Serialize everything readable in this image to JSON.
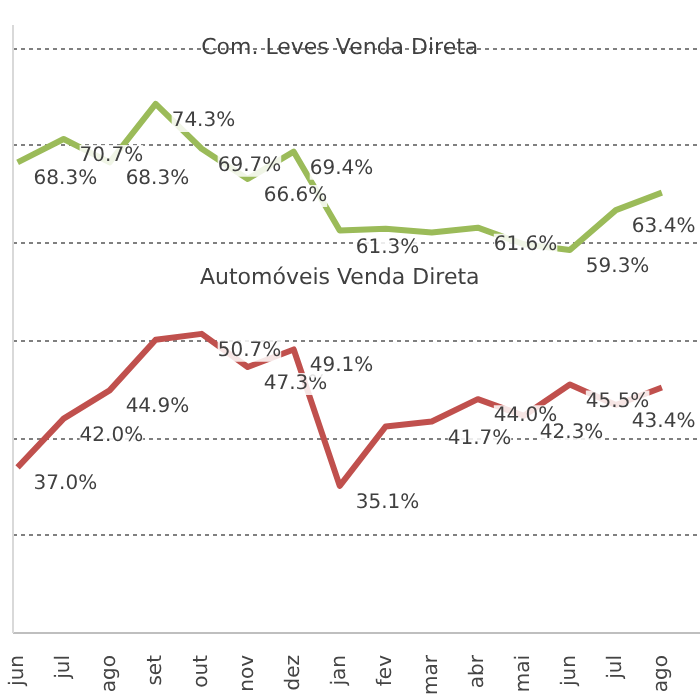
{
  "chart_data": {
    "type": "line",
    "categories": [
      "jun",
      "jul",
      "ago",
      "set",
      "out",
      "nov",
      "dez",
      "jan",
      "fev",
      "mar",
      "abr",
      "mai",
      "jun",
      "jul",
      "ago"
    ],
    "series": [
      {
        "name": "Com. Leves Venda Direta",
        "color": "#9bbb59",
        "values": [
          68.3,
          70.7,
          68.3,
          74.3,
          69.7,
          66.6,
          69.4,
          61.3,
          61.5,
          61.1,
          61.6,
          59.9,
          59.3,
          63.4,
          65.2
        ],
        "value_labels": [
          "68.3%",
          "70.7%",
          "68.3%",
          "74.3%",
          "69.7%",
          "66.6%",
          "69.4%",
          "61.3%",
          null,
          null,
          "61.6%",
          null,
          "59.3%",
          "63.4%",
          null
        ]
      },
      {
        "name": "Automóveis Venda Direta",
        "color": "#c0504d",
        "values": [
          37.0,
          42.0,
          44.9,
          50.1,
          50.7,
          47.3,
          49.1,
          35.1,
          41.2,
          41.7,
          44.0,
          42.3,
          45.5,
          43.4,
          45.2
        ],
        "value_labels": [
          "37.0%",
          "42.0%",
          "44.9%",
          null,
          "50.7%",
          "47.3%",
          "49.1%",
          "35.1%",
          null,
          "41.7%",
          "44.0%",
          "42.3%",
          "45.5%",
          "43.4%",
          null
        ]
      }
    ],
    "ylim": [
      20,
      82.4
    ],
    "yticks": [
      {
        "value": 30,
        "label": null
      },
      {
        "value": 40,
        "label": null
      },
      {
        "value": 50,
        "label": null
      },
      {
        "value": 60,
        "label": null
      },
      {
        "value": 70,
        "label": null
      },
      {
        "value": 80,
        "label": null
      }
    ],
    "tick_labels": "x",
    "grid": "y",
    "marker": "none",
    "line_style": "solid"
  }
}
